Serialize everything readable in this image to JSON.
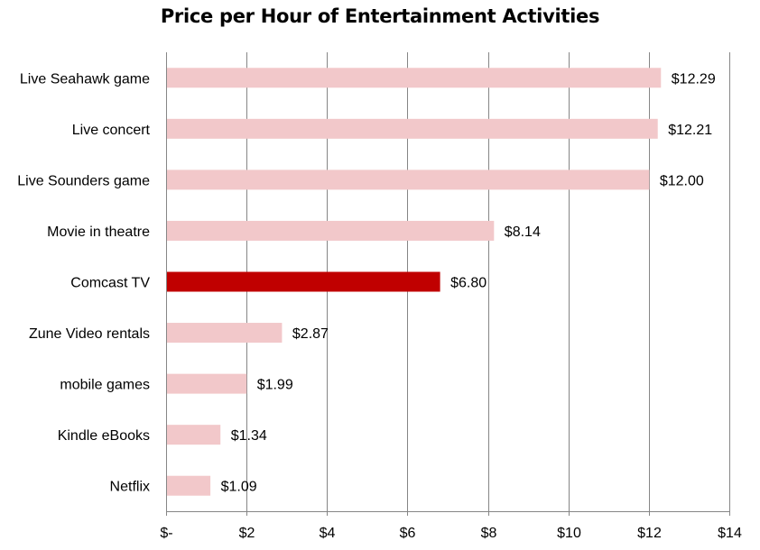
{
  "chart_data": {
    "type": "bar",
    "orientation": "horizontal",
    "title": "Price per Hour of Entertainment Activities",
    "xlabel": "",
    "ylabel": "",
    "xlim": [
      0,
      14
    ],
    "x_ticks": [
      0,
      2,
      4,
      6,
      8,
      10,
      12,
      14
    ],
    "x_tick_labels": [
      "$-",
      "$2",
      "$4",
      "$6",
      "$8",
      "$10",
      "$12",
      "$14"
    ],
    "grid": "vertical major gridlines",
    "legend": "none",
    "categories": [
      "Live Seahawk game",
      "Live concert",
      "Live Sounders game",
      "Movie in theatre",
      "Comcast TV",
      "Zune Video rentals",
      "mobile games",
      "Kindle eBooks",
      "Netflix"
    ],
    "values": [
      12.29,
      12.21,
      12.0,
      8.14,
      6.8,
      2.87,
      1.99,
      1.34,
      1.09
    ],
    "value_labels": [
      "$12.29",
      "$12.21",
      "$12.00",
      "$8.14",
      "$6.80",
      "$2.87",
      "$1.99",
      "$1.34",
      "$1.09"
    ],
    "highlight_category": "Comcast TV",
    "colors": {
      "bar": "#f2c8ca",
      "highlight": "#c00000",
      "grid": "#868686",
      "axis": "#868686"
    }
  }
}
